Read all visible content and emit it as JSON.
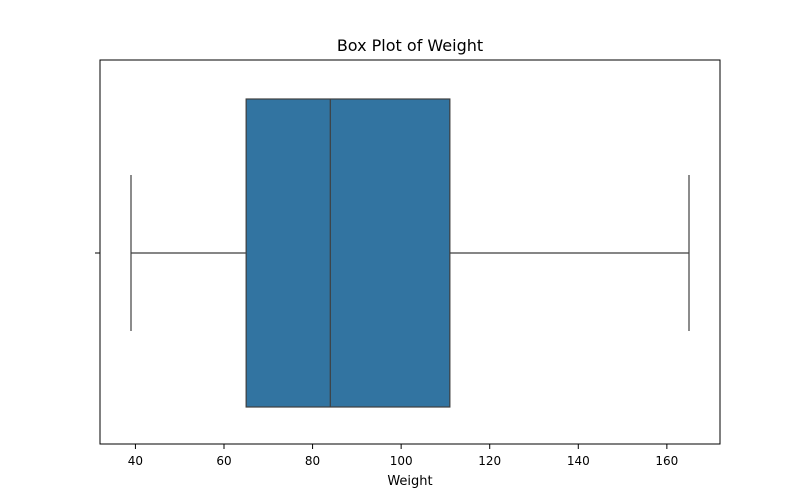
{
  "chart_data": {
    "type": "box",
    "title": "Box Plot of Weight",
    "xlabel": "Weight",
    "ylabel": "",
    "xlim": [
      32,
      172
    ],
    "xticks": [
      40,
      60,
      80,
      100,
      120,
      140,
      160
    ],
    "grid": false,
    "legend": "none",
    "orientation": "horizontal",
    "series": [
      {
        "min": 39,
        "q1": 65,
        "median": 84,
        "q3": 111,
        "max": 165,
        "color": "#3274a1"
      }
    ]
  }
}
